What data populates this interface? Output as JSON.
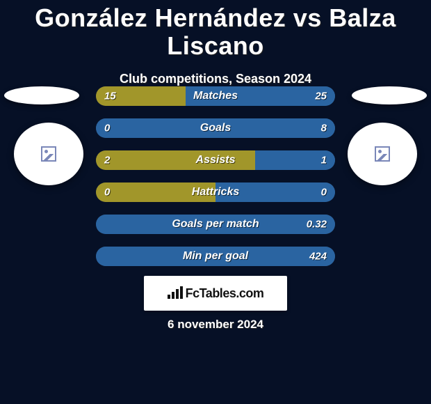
{
  "header": {
    "title": "González Hernández vs Balza Liscano",
    "subtitle": "Club competitions, Season 2024"
  },
  "chart": {
    "left_color": "#a1962a",
    "right_color": "#2a64a1",
    "border_radius": 14,
    "label_fontsize": 16,
    "value_fontsize": 15,
    "rows": [
      {
        "label": "Matches",
        "left": "15",
        "right": "25",
        "left_pct": 37.5,
        "right_pct": 62.5
      },
      {
        "label": "Goals",
        "left": "0",
        "right": "8",
        "left_pct": 0,
        "right_pct": 100
      },
      {
        "label": "Assists",
        "left": "2",
        "right": "1",
        "left_pct": 66.7,
        "right_pct": 33.3
      },
      {
        "label": "Hattricks",
        "left": "0",
        "right": "0",
        "left_pct": 50,
        "right_pct": 50
      },
      {
        "label": "Goals per match",
        "left": "",
        "right": "0.32",
        "left_pct": 0,
        "right_pct": 100
      },
      {
        "label": "Min per goal",
        "left": "",
        "right": "424",
        "left_pct": 0,
        "right_pct": 100
      }
    ]
  },
  "footer": {
    "brand": "FcTables.com",
    "date": "6 november 2024"
  },
  "colors": {
    "background": "#061026",
    "text": "#ffffff"
  }
}
